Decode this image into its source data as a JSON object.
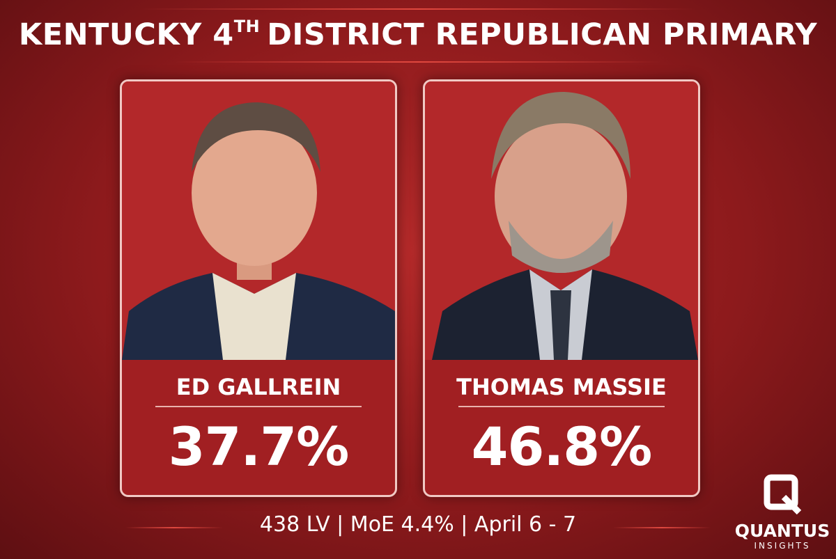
{
  "header": {
    "title": {
      "main": "KENTUCKY 4",
      "superscript": "TH",
      "rest": "DISTRICT REPUBLICAN PRIMARY"
    }
  },
  "candidates": [
    {
      "name": "ED GALLREIN",
      "share": "37.7%"
    },
    {
      "name": "THOMAS MASSIE",
      "share": "46.8%"
    }
  ],
  "footer": {
    "note": "438 LV | MoE 4.4% | April 6 - 7"
  },
  "logo": {
    "name": "QUANTUS",
    "tagline": "INSIGHTS"
  }
}
